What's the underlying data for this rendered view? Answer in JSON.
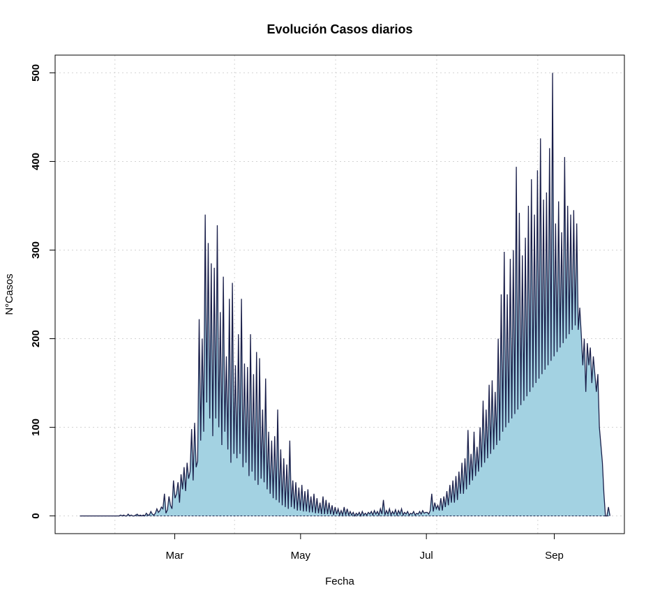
{
  "chart_data": {
    "type": "area",
    "title": "Evolución Casos diarios",
    "xlabel": "Fecha",
    "ylabel": "N°Casos",
    "ylim": [
      -20,
      520
    ],
    "yticks": [
      0,
      100,
      200,
      300,
      400,
      500
    ],
    "x_start": "2020-01-15",
    "x_end": "2020-09-28",
    "xlim": [
      "2020-01-03",
      "2020-10-05"
    ],
    "xtick_labels": [
      {
        "date": "2020-03-01",
        "label": "Mar"
      },
      {
        "date": "2020-05-01",
        "label": "May"
      },
      {
        "date": "2020-07-01",
        "label": "Jul"
      },
      {
        "date": "2020-09-01",
        "label": "Sep"
      }
    ],
    "vgrid_dates": [
      "2020-02-01",
      "2020-03-30",
      "2020-05-18",
      "2020-07-06",
      "2020-08-24"
    ],
    "grid": true,
    "fill_color": "#a3d2e2",
    "line_color": "#1a1f4a",
    "series": [
      {
        "values": [
          0,
          0,
          0,
          0,
          0,
          0,
          0,
          0,
          0,
          0,
          0,
          0,
          0,
          0,
          0,
          0,
          0,
          0,
          0,
          0,
          0,
          0,
          0,
          0,
          0,
          0,
          0,
          1,
          0,
          1,
          0,
          0,
          2,
          0,
          1,
          0,
          0,
          1,
          2,
          0,
          1,
          0,
          1,
          0,
          3,
          1,
          1,
          5,
          2,
          1,
          3,
          8,
          4,
          6,
          10,
          8,
          25,
          3,
          7,
          22,
          12,
          8,
          40,
          20,
          25,
          38,
          15,
          47,
          30,
          55,
          28,
          60,
          42,
          50,
          98,
          40,
          105,
          55,
          62,
          222,
          85,
          200,
          95,
          340,
          128,
          308,
          110,
          285,
          90,
          280,
          110,
          328,
          100,
          230,
          80,
          270,
          95,
          180,
          75,
          245,
          60,
          263,
          70,
          170,
          65,
          205,
          70,
          245,
          55,
          172,
          60,
          168,
          45,
          205,
          50,
          160,
          40,
          185,
          35,
          178,
          42,
          120,
          38,
          155,
          30,
          95,
          25,
          85,
          20,
          90,
          18,
          120,
          15,
          75,
          12,
          65,
          10,
          58,
          8,
          85,
          10,
          40,
          8,
          38,
          6,
          32,
          6,
          35,
          5,
          28,
          5,
          30,
          4,
          22,
          4,
          25,
          3,
          20,
          3,
          15,
          2,
          22,
          2,
          18,
          2,
          15,
          2,
          12,
          1,
          10,
          2,
          8,
          1,
          6,
          1,
          10,
          1,
          8,
          1,
          5,
          1,
          4,
          0,
          3,
          1,
          4,
          0,
          5,
          1,
          3,
          1,
          4,
          2,
          5,
          1,
          6,
          2,
          5,
          1,
          8,
          2,
          18,
          1,
          6,
          2,
          8,
          1,
          5,
          2,
          7,
          1,
          6,
          2,
          8,
          1,
          4,
          2,
          5,
          1,
          3,
          2,
          5,
          1,
          3,
          2,
          5,
          2,
          6,
          3,
          4,
          4,
          2,
          6,
          25,
          5,
          15,
          8,
          12,
          6,
          20,
          6,
          22,
          10,
          28,
          12,
          35,
          15,
          40,
          15,
          45,
          18,
          50,
          25,
          60,
          25,
          65,
          30,
          97,
          35,
          70,
          40,
          95,
          45,
          78,
          50,
          100,
          55,
          130,
          60,
          120,
          65,
          148,
          70,
          153,
          75,
          140,
          80,
          200,
          85,
          250,
          95,
          298,
          100,
          250,
          105,
          290,
          110,
          300,
          115,
          394,
          120,
          342,
          125,
          294,
          130,
          314,
          135,
          350,
          140,
          380,
          145,
          340,
          150,
          390,
          155,
          426,
          160,
          357,
          165,
          365,
          170,
          415,
          175,
          500,
          180,
          330,
          185,
          355,
          190,
          320,
          195,
          405,
          200,
          350,
          205,
          340,
          210,
          345,
          215,
          330,
          210,
          235,
          205,
          170,
          200,
          140,
          195,
          170,
          190,
          150,
          180,
          160,
          140,
          160,
          100,
          80,
          60,
          25,
          0,
          0,
          10,
          0
        ]
      }
    ]
  }
}
